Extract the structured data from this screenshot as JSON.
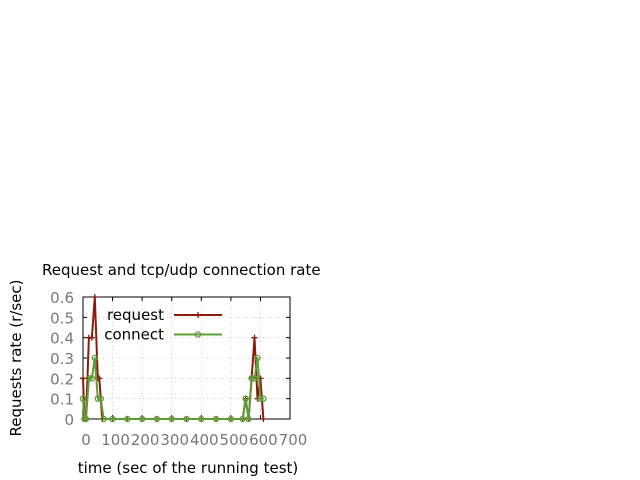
{
  "chart_data": {
    "type": "line",
    "title": "Request and tcp/udp connection rate",
    "xlabel": "time (sec of the running test)",
    "ylabel": "Requests rate (r/sec)",
    "xlim": [
      0,
      700
    ],
    "ylim": [
      0,
      0.6
    ],
    "x_ticks": [
      "0",
      "100",
      "200",
      "300",
      "400",
      "500",
      "600",
      "700"
    ],
    "y_ticks": [
      "0",
      "0.1",
      "0.2",
      "0.3",
      "0.4",
      "0.5",
      "0.6"
    ],
    "grid": true,
    "legend_position": "top-left",
    "series": [
      {
        "name": "request",
        "color": "#8b1a0e",
        "marker": "plus",
        "points": [
          [
            0,
            0.2
          ],
          [
            5,
            0
          ],
          [
            10,
            0
          ],
          [
            20,
            0.4
          ],
          [
            30,
            0.4
          ],
          [
            40,
            0.6
          ],
          [
            50,
            0.2
          ],
          [
            55,
            0.2
          ],
          [
            65,
            0
          ],
          [
            100,
            0
          ],
          [
            150,
            0
          ],
          [
            200,
            0
          ],
          [
            250,
            0
          ],
          [
            300,
            0
          ],
          [
            350,
            0
          ],
          [
            400,
            0
          ],
          [
            450,
            0
          ],
          [
            500,
            0
          ],
          [
            540,
            0
          ],
          [
            550,
            0.1
          ],
          [
            560,
            0
          ],
          [
            570,
            0.2
          ],
          [
            580,
            0.4
          ],
          [
            590,
            0.1
          ],
          [
            600,
            0.2
          ],
          [
            610,
            0
          ]
        ]
      },
      {
        "name": "connect",
        "color": "#5e9c36",
        "marker": "circle",
        "points": [
          [
            0,
            0.1
          ],
          [
            5,
            0
          ],
          [
            10,
            0
          ],
          [
            20,
            0.2
          ],
          [
            30,
            0.2
          ],
          [
            40,
            0.3
          ],
          [
            50,
            0.1
          ],
          [
            60,
            0.1
          ],
          [
            70,
            0
          ],
          [
            100,
            0
          ],
          [
            150,
            0
          ],
          [
            200,
            0
          ],
          [
            250,
            0
          ],
          [
            300,
            0
          ],
          [
            350,
            0
          ],
          [
            400,
            0
          ],
          [
            450,
            0
          ],
          [
            500,
            0
          ],
          [
            540,
            0
          ],
          [
            550,
            0.1
          ],
          [
            560,
            0
          ],
          [
            570,
            0.2
          ],
          [
            580,
            0.2
          ],
          [
            590,
            0.3
          ],
          [
            600,
            0.1
          ],
          [
            610,
            0.1
          ]
        ]
      }
    ]
  }
}
